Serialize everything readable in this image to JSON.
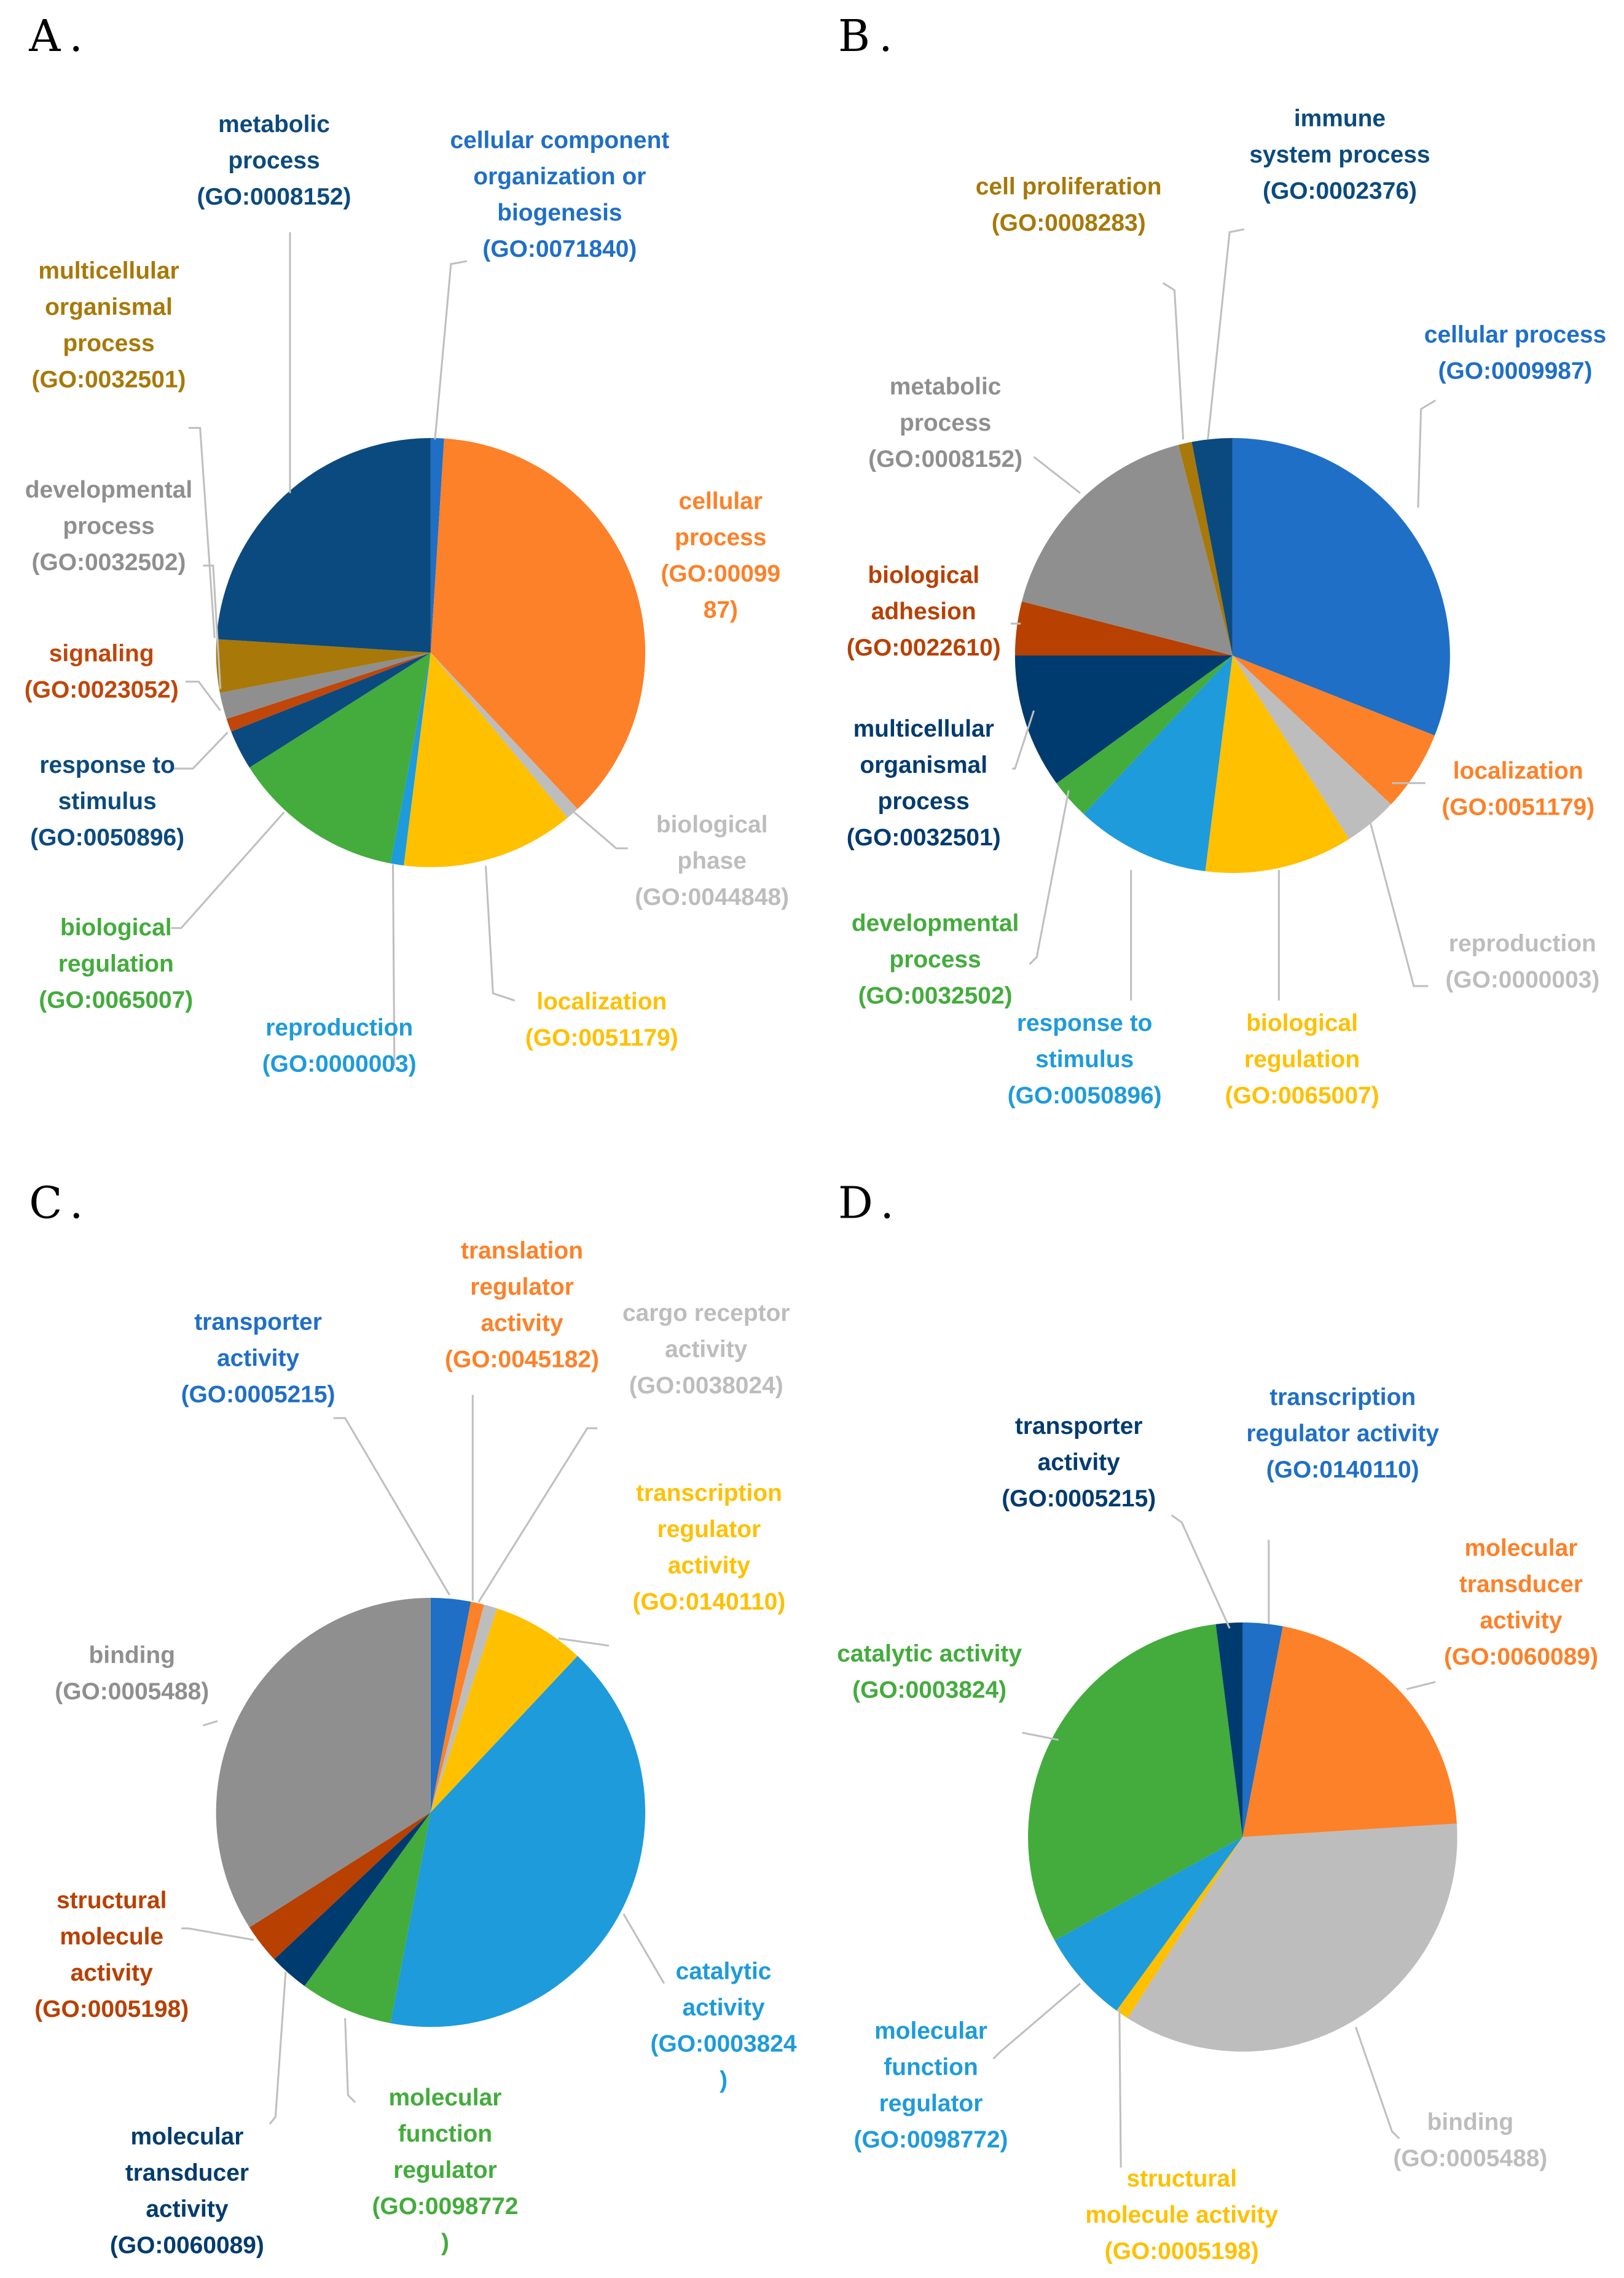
{
  "chart_data": [
    {
      "type": "pie",
      "title": "A.",
      "categories": [
        [
          "cellular component",
          "organization or",
          "biogenesis",
          "(GO:0071840)"
        ],
        [
          "cellular",
          "process",
          "(GO:00099",
          "87)"
        ],
        [
          "biological",
          "phase",
          "(GO:0044848)"
        ],
        [
          "localization",
          "(GO:0051179)"
        ],
        [
          "reproduction",
          "(GO:0000003)"
        ],
        [
          "biological",
          "regulation",
          "(GO:0065007)"
        ],
        [
          "response to",
          "stimulus",
          "(GO:0050896)"
        ],
        [
          "signaling",
          "(GO:0023052)"
        ],
        [
          "developmental",
          "process",
          "(GO:0032502)"
        ],
        [
          "multicellular",
          "organismal",
          "process",
          "(GO:0032501)"
        ],
        [
          "metabolic",
          "process",
          "(GO:0008152)"
        ]
      ],
      "values": [
        1,
        37,
        1,
        13,
        1,
        13,
        3,
        1,
        2,
        4,
        24
      ],
      "colors": [
        "#1f6fc6",
        "#fd8128",
        "#bdbdbd",
        "#ffc000",
        "#1e9bdb",
        "#43ac3c",
        "#0b4a7e",
        "#c0460a",
        "#8f8f8f",
        "#a87808",
        "#0b4a7e"
      ]
    },
    {
      "type": "pie",
      "title": "B.",
      "categories": [
        [
          "cellular process",
          "(GO:0009987)"
        ],
        [
          "localization",
          "(GO:0051179)"
        ],
        [
          "reproduction",
          "(GO:0000003)"
        ],
        [
          "biological",
          "regulation",
          "(GO:0065007)"
        ],
        [
          "response to",
          "stimulus",
          "(GO:0050896)"
        ],
        [
          "developmental",
          "process",
          "(GO:0032502)"
        ],
        [
          "multicellular",
          "organismal",
          "process",
          "(GO:0032501)"
        ],
        [
          "biological",
          "adhesion",
          "(GO:0022610)"
        ],
        [
          "metabolic",
          "process",
          "(GO:0008152)"
        ],
        [
          "cell proliferation",
          "(GO:0008283)"
        ],
        [
          "immune",
          "system process",
          "(GO:0002376)"
        ]
      ],
      "values": [
        31,
        6,
        4,
        11,
        10,
        3,
        10,
        4,
        17,
        1,
        3
      ],
      "colors": [
        "#1f6fc6",
        "#fd8128",
        "#bdbdbd",
        "#ffc000",
        "#1e9bdb",
        "#43ac3c",
        "#003b6f",
        "#b84000",
        "#8f8f8f",
        "#a87808",
        "#0b4a7e"
      ]
    },
    {
      "type": "pie",
      "title": "C.",
      "categories": [
        [
          "transporter",
          "activity",
          "(GO:0005215)"
        ],
        [
          "translation",
          "regulator",
          "activity",
          "(GO:0045182)"
        ],
        [
          "cargo receptor",
          "activity",
          "(GO:0038024)"
        ],
        [
          "transcription",
          "regulator",
          "activity",
          "(GO:0140110)"
        ],
        [
          "catalytic",
          "activity",
          "(GO:0003824",
          ")"
        ],
        [
          "molecular",
          "function",
          "regulator",
          "(GO:0098772",
          ")"
        ],
        [
          "molecular",
          "transducer",
          "activity",
          "(GO:0060089)"
        ],
        [
          "structural",
          "molecule",
          "activity",
          "(GO:0005198)"
        ],
        [
          "binding",
          "(GO:0005488)"
        ]
      ],
      "values": [
        3,
        1,
        1,
        7,
        41,
        7,
        3,
        3,
        34
      ],
      "colors": [
        "#1f6fc6",
        "#fd8128",
        "#bdbdbd",
        "#ffc000",
        "#1e9bdb",
        "#43ac3c",
        "#003b6f",
        "#b84000",
        "#8f8f8f"
      ]
    },
    {
      "type": "pie",
      "title": "D.",
      "categories": [
        [
          "transcription",
          "regulator activity",
          "(GO:0140110)"
        ],
        [
          "molecular",
          "transducer",
          "activity",
          "(GO:0060089)"
        ],
        [
          "binding",
          "(GO:0005488)"
        ],
        [
          "structural",
          "molecule activity",
          "(GO:0005198)"
        ],
        [
          "molecular",
          "function",
          "regulator",
          "(GO:0098772)"
        ],
        [
          "catalytic activity",
          "(GO:0003824)"
        ],
        [
          "transporter",
          "activity",
          "(GO:0005215)"
        ]
      ],
      "values": [
        3,
        21,
        35,
        1,
        7,
        31,
        2
      ],
      "colors": [
        "#1f6fc6",
        "#fd8128",
        "#bdbdbd",
        "#ffc000",
        "#1e9bdb",
        "#43ac3c",
        "#003b6f"
      ]
    }
  ]
}
